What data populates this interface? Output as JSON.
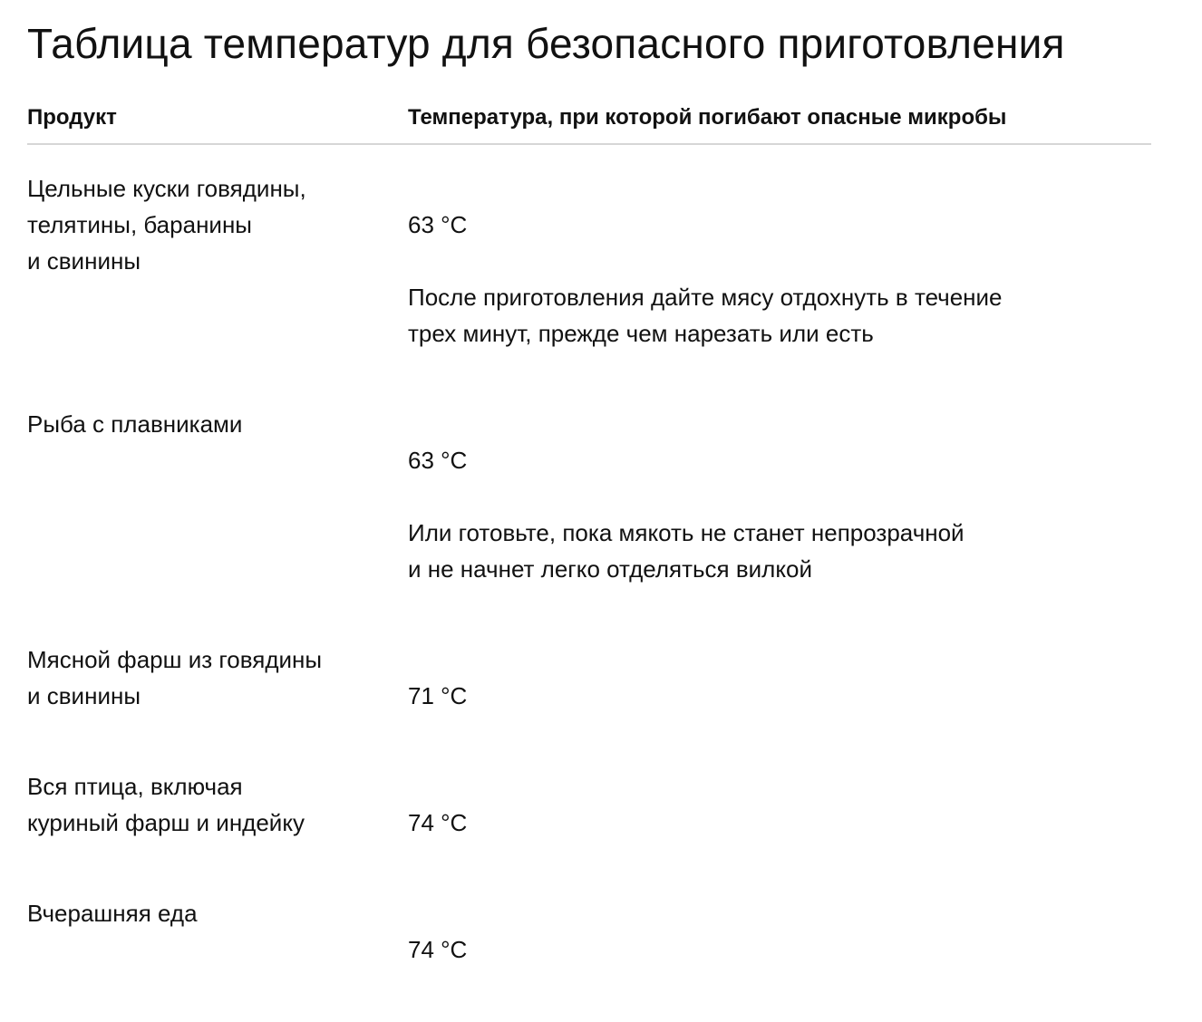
{
  "title": "Таблица температур для безопасного приготовления",
  "table": {
    "headers": {
      "product": "Продукт",
      "temperature": "Температура, при которой погибают опасные микробы"
    },
    "rows": [
      {
        "product": "Цельные куски говядины,\nтелятины, баранины\nи свинины",
        "temperature": "63 °C",
        "note": "После приготовления дайте мясу отдохнуть в течение\nтрех минут, прежде чем нарезать или есть"
      },
      {
        "product": "Рыба с плавниками",
        "temperature": "63 °C",
        "note": "Или готовьте, пока мякоть не станет непрозрачной\nи не начнет легко отделяться вилкой"
      },
      {
        "product": "Мясной фарш из говядины\nи свинины",
        "temperature": "71 °C",
        "note": ""
      },
      {
        "product": "Вся птица, включая\nкуриный фарш и индейку",
        "temperature": "74 °C",
        "note": ""
      },
      {
        "product": "Вчерашняя еда",
        "temperature": "74 °C",
        "note": ""
      }
    ]
  }
}
